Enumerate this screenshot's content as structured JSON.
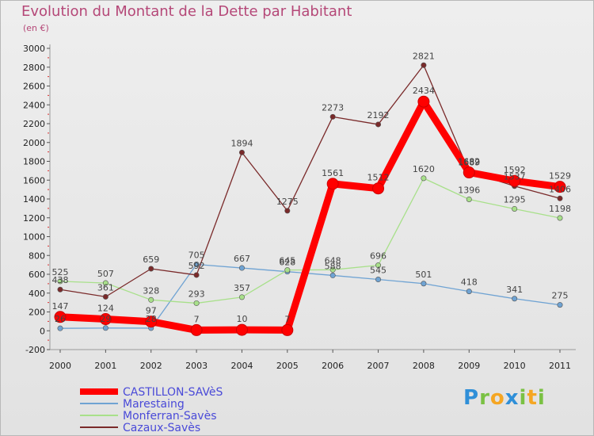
{
  "chart_data": {
    "type": "line",
    "title": "Evolution du Montant de la Dette par Habitant",
    "unit": "(en €)",
    "x": [
      "2000",
      "2001",
      "2002",
      "2003",
      "2004",
      "2005",
      "2006",
      "2007",
      "2008",
      "2009",
      "2010",
      "2011"
    ],
    "ylim": [
      -200,
      3000
    ],
    "yticks": [
      -200,
      0,
      200,
      400,
      600,
      800,
      1000,
      1200,
      1400,
      1600,
      1800,
      2000,
      2200,
      2400,
      2600,
      2800,
      3000
    ],
    "grid": false,
    "legend_position": "bottom-left",
    "series": [
      {
        "name": "CASTILLON-SAVèS",
        "color": "#ff0000",
        "values": [
          147,
          124,
          97,
          7,
          10,
          7,
          1561,
          1512,
          2434,
          1682,
          1592,
          1529
        ]
      },
      {
        "name": "Marestaing",
        "color": "#6fa3d3",
        "values": [
          26,
          29,
          28,
          705,
          667,
          628,
          588,
          545,
          501,
          418,
          341,
          275
        ]
      },
      {
        "name": "Monferran-Savès",
        "color": "#a8e08a",
        "values": [
          525,
          507,
          328,
          293,
          357,
          645,
          648,
          696,
          1620,
          1396,
          1295,
          1198
        ]
      },
      {
        "name": "Cazaux-Savès",
        "color": "#7a2a2a",
        "values": [
          438,
          361,
          659,
          592,
          1894,
          1275,
          2273,
          2192,
          2821,
          1689,
          1537,
          1406
        ]
      }
    ]
  },
  "brand": {
    "logo_text": "Proxiti",
    "logo_letters": [
      "P",
      "r",
      "o",
      "x",
      "i",
      "t",
      "i"
    ],
    "logo_colors": [
      "#2f8fd8",
      "#7ac143",
      "#f5a623",
      "#2f8fd8",
      "#7ac143",
      "#f5a623",
      "#7ac143"
    ]
  }
}
